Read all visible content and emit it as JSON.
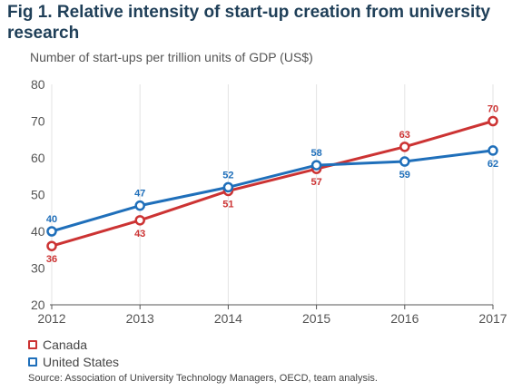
{
  "title": "Fig 1. Relative intensity of start-up creation from university research",
  "source": "Source: Association of University Technology Managers, OECD, team analysis.",
  "colors": {
    "canada": "#cc3333",
    "united_states": "#1f6fba",
    "grid": "#e3e3e3",
    "title": "#1f3f58"
  },
  "chart_data": {
    "type": "line",
    "title": "Fig 1. Relative intensity of start-up creation from university research",
    "ylabel": "Number of start-ups per trillion units of GDP (US$)",
    "xlabel": "",
    "x": [
      "2012",
      "2013",
      "2014",
      "2015",
      "2016",
      "2017"
    ],
    "ylim": [
      20,
      80
    ],
    "yticks": [
      "20",
      "30",
      "40",
      "50",
      "60",
      "70",
      "80"
    ],
    "grid": "vertical",
    "legend_position": "bottom-left",
    "series": [
      {
        "name": "Canada",
        "color": "#cc3333",
        "values": [
          36,
          43,
          51,
          57,
          63,
          70
        ],
        "labels": [
          "36",
          "43",
          "51",
          "57",
          "63",
          "70"
        ]
      },
      {
        "name": "United States",
        "color": "#1f6fba",
        "values": [
          40,
          47,
          52,
          58,
          59,
          62
        ],
        "labels": [
          "40",
          "47",
          "52",
          "58",
          "59",
          "62"
        ]
      }
    ]
  }
}
